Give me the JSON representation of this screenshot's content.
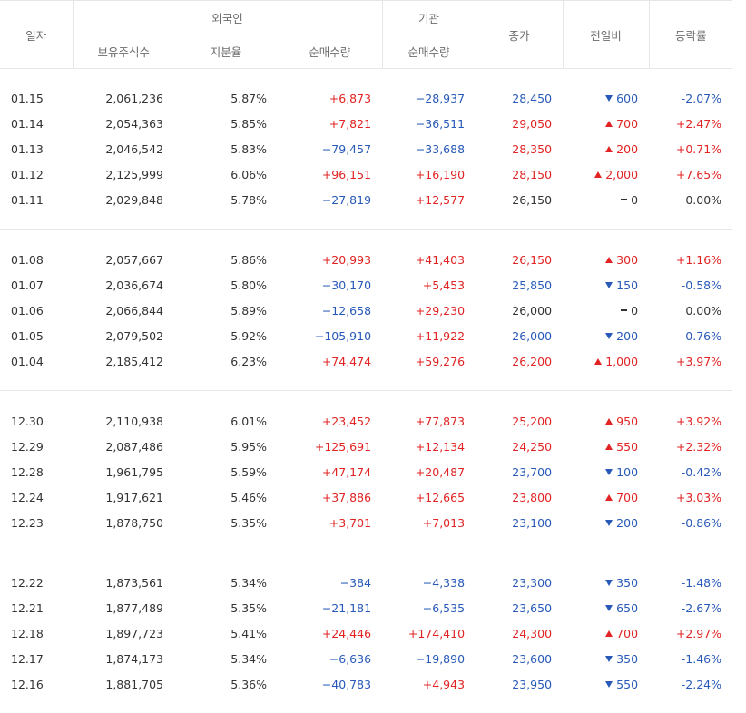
{
  "header": {
    "date": "일자",
    "foreign": "외국인",
    "institution": "기관",
    "close": "종가",
    "change": "전일비",
    "rate": "등락률",
    "holdings": "보유주식수",
    "ratio": "지분율",
    "foreign_net": "순매수량",
    "inst_net": "순매수량"
  },
  "groups": [
    [
      {
        "date": "01.15",
        "holdings": "2,061,236",
        "ratio": "5.87%",
        "foreign_net": "+6,873",
        "inst_net": "−28,937",
        "close": "28,450",
        "dir": "down",
        "change": "600",
        "rate": "-2.07%"
      },
      {
        "date": "01.14",
        "holdings": "2,054,363",
        "ratio": "5.85%",
        "foreign_net": "+7,821",
        "inst_net": "−36,511",
        "close": "29,050",
        "dir": "up",
        "change": "700",
        "rate": "+2.47%"
      },
      {
        "date": "01.13",
        "holdings": "2,046,542",
        "ratio": "5.83%",
        "foreign_net": "−79,457",
        "inst_net": "−33,688",
        "close": "28,350",
        "dir": "up",
        "change": "200",
        "rate": "+0.71%"
      },
      {
        "date": "01.12",
        "holdings": "2,125,999",
        "ratio": "6.06%",
        "foreign_net": "+96,151",
        "inst_net": "+16,190",
        "close": "28,150",
        "dir": "up",
        "change": "2,000",
        "rate": "+7.65%"
      },
      {
        "date": "01.11",
        "holdings": "2,029,848",
        "ratio": "5.78%",
        "foreign_net": "−27,819",
        "inst_net": "+12,577",
        "close": "26,150",
        "dir": "flat",
        "change": "0",
        "rate": "0.00%"
      }
    ],
    [
      {
        "date": "01.08",
        "holdings": "2,057,667",
        "ratio": "5.86%",
        "foreign_net": "+20,993",
        "inst_net": "+41,403",
        "close": "26,150",
        "dir": "up",
        "change": "300",
        "rate": "+1.16%"
      },
      {
        "date": "01.07",
        "holdings": "2,036,674",
        "ratio": "5.80%",
        "foreign_net": "−30,170",
        "inst_net": "+5,453",
        "close": "25,850",
        "dir": "down",
        "change": "150",
        "rate": "-0.58%"
      },
      {
        "date": "01.06",
        "holdings": "2,066,844",
        "ratio": "5.89%",
        "foreign_net": "−12,658",
        "inst_net": "+29,230",
        "close": "26,000",
        "dir": "flat",
        "change": "0",
        "rate": "0.00%"
      },
      {
        "date": "01.05",
        "holdings": "2,079,502",
        "ratio": "5.92%",
        "foreign_net": "−105,910",
        "inst_net": "+11,922",
        "close": "26,000",
        "dir": "down",
        "change": "200",
        "rate": "-0.76%"
      },
      {
        "date": "01.04",
        "holdings": "2,185,412",
        "ratio": "6.23%",
        "foreign_net": "+74,474",
        "inst_net": "+59,276",
        "close": "26,200",
        "dir": "up",
        "change": "1,000",
        "rate": "+3.97%"
      }
    ],
    [
      {
        "date": "12.30",
        "holdings": "2,110,938",
        "ratio": "6.01%",
        "foreign_net": "+23,452",
        "inst_net": "+77,873",
        "close": "25,200",
        "dir": "up",
        "change": "950",
        "rate": "+3.92%"
      },
      {
        "date": "12.29",
        "holdings": "2,087,486",
        "ratio": "5.95%",
        "foreign_net": "+125,691",
        "inst_net": "+12,134",
        "close": "24,250",
        "dir": "up",
        "change": "550",
        "rate": "+2.32%"
      },
      {
        "date": "12.28",
        "holdings": "1,961,795",
        "ratio": "5.59%",
        "foreign_net": "+47,174",
        "inst_net": "+20,487",
        "close": "23,700",
        "dir": "down",
        "change": "100",
        "rate": "-0.42%"
      },
      {
        "date": "12.24",
        "holdings": "1,917,621",
        "ratio": "5.46%",
        "foreign_net": "+37,886",
        "inst_net": "+12,665",
        "close": "23,800",
        "dir": "up",
        "change": "700",
        "rate": "+3.03%"
      },
      {
        "date": "12.23",
        "holdings": "1,878,750",
        "ratio": "5.35%",
        "foreign_net": "+3,701",
        "inst_net": "+7,013",
        "close": "23,100",
        "dir": "down",
        "change": "200",
        "rate": "-0.86%"
      }
    ],
    [
      {
        "date": "12.22",
        "holdings": "1,873,561",
        "ratio": "5.34%",
        "foreign_net": "−384",
        "inst_net": "−4,338",
        "close": "23,300",
        "dir": "down",
        "change": "350",
        "rate": "-1.48%"
      },
      {
        "date": "12.21",
        "holdings": "1,877,489",
        "ratio": "5.35%",
        "foreign_net": "−21,181",
        "inst_net": "−6,535",
        "close": "23,650",
        "dir": "down",
        "change": "650",
        "rate": "-2.67%"
      },
      {
        "date": "12.18",
        "holdings": "1,897,723",
        "ratio": "5.41%",
        "foreign_net": "+24,446",
        "inst_net": "+174,410",
        "close": "24,300",
        "dir": "up",
        "change": "700",
        "rate": "+2.97%"
      },
      {
        "date": "12.17",
        "holdings": "1,874,173",
        "ratio": "5.34%",
        "foreign_net": "−6,636",
        "inst_net": "−19,890",
        "close": "23,600",
        "dir": "down",
        "change": "350",
        "rate": "-1.46%"
      },
      {
        "date": "12.16",
        "holdings": "1,881,705",
        "ratio": "5.36%",
        "foreign_net": "−40,783",
        "inst_net": "+4,943",
        "close": "23,950",
        "dir": "down",
        "change": "550",
        "rate": "-2.24%"
      }
    ]
  ],
  "colors": {
    "up": "#e12323",
    "down": "#2859b8",
    "text": "#333333",
    "border": "#e6e6e6",
    "header_text": "#6c6c6c"
  }
}
